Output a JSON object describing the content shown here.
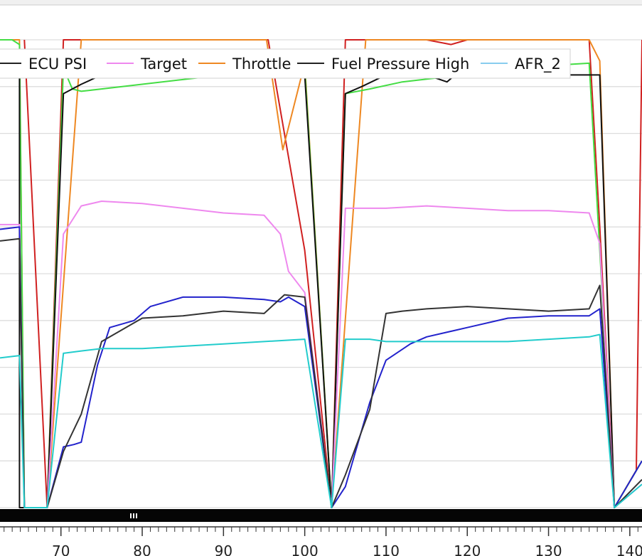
{
  "chart_data": {
    "type": "line",
    "title": "",
    "xlabel": "",
    "ylabel": "",
    "xlim": [
      62.5,
      141.5
    ],
    "ylim": [
      0,
      100
    ],
    "grid": true,
    "legend_placement": "top-left",
    "x_ticks": [
      "70",
      "80",
      "90",
      "100",
      "110",
      "120",
      "130",
      "140"
    ],
    "x_tick_values": [
      70,
      80,
      90,
      100,
      110,
      120,
      130,
      140
    ],
    "legend": [
      {
        "name": "ECU PSI",
        "color": "#222222"
      },
      {
        "name": "Target",
        "color": "#ee88ee"
      },
      {
        "name": "Throttle",
        "color": "#ee8822"
      },
      {
        "name": "Fuel Pressure High",
        "color": "#222222"
      },
      {
        "name": "AFR_2",
        "color": "#88ccee"
      }
    ],
    "series": [
      {
        "key": "red",
        "color": "#d02020",
        "x": [
          65.5,
          68.3,
          70.3,
          72.5,
          75,
          80,
          85,
          90,
          95.5,
          97,
          100,
          103.3,
          105,
          110,
          115,
          118,
          120,
          125,
          130,
          135,
          136.3,
          138.1,
          140.8,
          141.5
        ],
        "y": [
          100,
          0,
          100,
          100,
          100,
          100,
          100,
          100,
          100,
          85,
          55,
          0,
          100,
          100,
          100,
          99,
          100,
          100,
          100,
          100,
          60,
          0,
          8,
          100
        ]
      },
      {
        "key": "throttle",
        "color": "#ee8822",
        "x": [
          62.5,
          64.9,
          65.5,
          68.3,
          72.5,
          75,
          80,
          85,
          90,
          95.3,
          97.3,
          100,
          103.3,
          107.5,
          110,
          120,
          130,
          135,
          136.3,
          138.1,
          141.5
        ],
        "y": [
          100,
          100,
          0,
          0,
          100,
          100,
          100,
          100,
          100,
          100,
          76.5,
          95,
          0,
          100,
          100,
          100,
          100,
          100,
          95.5,
          0,
          10
        ]
      },
      {
        "key": "green",
        "color": "#44dd44",
        "x": [
          62.5,
          64.0,
          64.9,
          65.5,
          68.3,
          70.3,
          71.4,
          72.5,
          75,
          80,
          85,
          90,
          95,
          98,
          100,
          103.3,
          105,
          108,
          112,
          117,
          120,
          125,
          130,
          135,
          138.1,
          141.5
        ],
        "y": [
          100,
          100,
          99,
          0,
          0,
          94,
          89.5,
          89,
          89.5,
          90.5,
          91.5,
          92.5,
          93.5,
          94,
          94,
          0,
          88.5,
          89.5,
          91,
          92,
          92.5,
          93.5,
          94.5,
          95,
          0,
          10
        ]
      },
      {
        "key": "ecu_psi",
        "color": "#111111",
        "x": [
          62.5,
          64.9,
          64.9,
          65.5,
          68.3,
          70.3,
          72.5,
          75,
          80,
          90,
          100,
          103.3,
          105,
          107,
          110,
          115,
          117.5,
          118.5,
          120,
          125,
          130,
          135,
          136.3,
          138.1
        ],
        "y": [
          92.5,
          92.5,
          0,
          0,
          0,
          88.5,
          90.5,
          92.5,
          92.5,
          92.5,
          92.5,
          0,
          88.5,
          90,
          92.5,
          92.5,
          91,
          92.5,
          92.5,
          92.5,
          92.5,
          92.5,
          92.5,
          0
        ]
      },
      {
        "key": "target",
        "color": "#ee88ee",
        "x": [
          62.5,
          64.9,
          65.5,
          68.3,
          70.3,
          72.5,
          75,
          80,
          85,
          90,
          95,
          97,
          98,
          100,
          103.3,
          105,
          110,
          115,
          120,
          125,
          130,
          135,
          136.3,
          138.1,
          141.5
        ],
        "y": [
          60.5,
          60.5,
          0,
          0,
          58.5,
          64.5,
          65.5,
          65,
          64,
          63,
          62.5,
          58.5,
          50.5,
          46,
          0,
          64,
          64,
          64.5,
          64,
          63.5,
          63.5,
          63,
          56.5,
          0,
          5
        ]
      },
      {
        "key": "blue",
        "color": "#2222cc",
        "x": [
          62.5,
          64.9,
          65.5,
          68.3,
          70.3,
          71.6,
          72.5,
          74.5,
          76,
          79,
          81,
          85,
          90,
          95,
          97,
          98,
          100,
          103.3,
          105,
          108,
          110,
          113,
          115,
          120,
          125,
          130,
          135,
          136.3,
          138.1,
          141.5
        ],
        "y": [
          59.5,
          60,
          0,
          0,
          13,
          13.5,
          14,
          30.5,
          38.5,
          40,
          43,
          45,
          45,
          44.5,
          44,
          45,
          43,
          0,
          4.5,
          22.5,
          31.5,
          35,
          36.5,
          38.5,
          40.5,
          41,
          41,
          42.5,
          0,
          10
        ]
      },
      {
        "key": "fuel_pressure_high",
        "color": "#333333",
        "x": [
          62.5,
          64.9,
          65.5,
          68.3,
          70.3,
          72.5,
          75,
          80,
          85,
          90,
          95,
          97.5,
          100,
          103.3,
          105,
          108,
          110,
          112,
          115,
          120,
          125,
          130,
          135,
          136.3,
          138.1,
          141.5
        ],
        "y": [
          57,
          57.5,
          0,
          0,
          12,
          20,
          35.5,
          40.5,
          41,
          42,
          41.5,
          45.5,
          45,
          0,
          7,
          21,
          41.5,
          42,
          42.5,
          43,
          42.5,
          42,
          42.5,
          47.5,
          0,
          6
        ]
      },
      {
        "key": "afr_2",
        "color": "#22cccc",
        "x": [
          62.5,
          64.9,
          65.5,
          68.3,
          70.3,
          72.5,
          75,
          80,
          85,
          90,
          95,
          100,
          103.3,
          105,
          108,
          110,
          115,
          120,
          125,
          130,
          135,
          136.3,
          138.1,
          141.5
        ],
        "y": [
          32,
          32.5,
          0,
          0,
          33,
          33.5,
          34,
          34,
          34.5,
          35,
          35.5,
          36,
          0,
          36,
          36,
          35.5,
          35.5,
          35.5,
          35.5,
          36,
          36.5,
          37,
          0,
          5
        ]
      }
    ]
  }
}
